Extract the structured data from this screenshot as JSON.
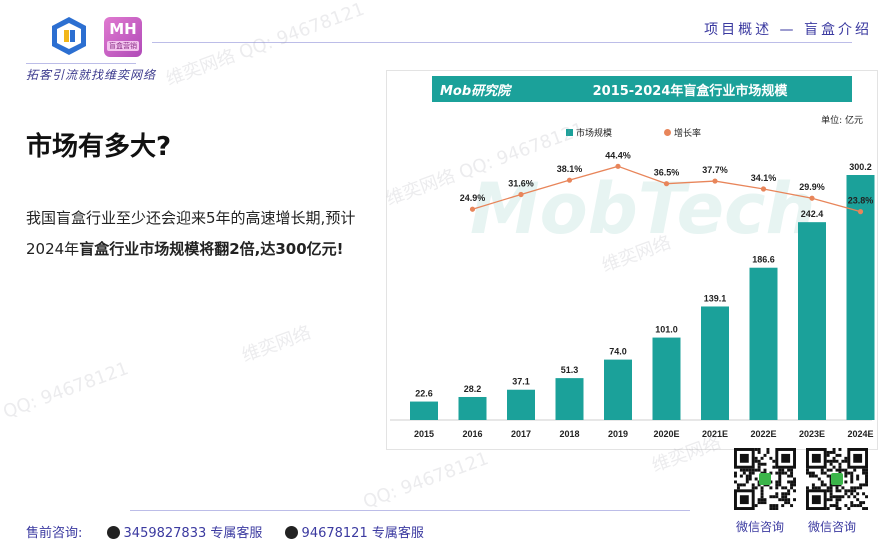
{
  "header": {
    "tagline": "拓客引流就找维奕网络",
    "section_title": "项目概述 — 盲盒介绍",
    "logo2_top": "MH",
    "logo2_bottom": "盲盒营销"
  },
  "content": {
    "heading": "市场有多大?",
    "desc_normal": "我国盲盒行业至少还会迎来5年的高速增长期,预计2024年",
    "desc_bold": "盲盒行业市场规模将翻2倍,达300亿元!"
  },
  "chart_panel": {
    "source_logo": "Mob研究院",
    "watermark": "MobTech"
  },
  "chart_data": {
    "type": "bar",
    "title": "2015-2024年盲盒行业市场规模",
    "unit": "单位: 亿元",
    "categories": [
      "2015",
      "2016",
      "2017",
      "2018",
      "2019",
      "2020E",
      "2021E",
      "2022E",
      "2023E",
      "2024E"
    ],
    "series": [
      {
        "name": "市场规模",
        "type": "bar",
        "color": "#1ba19a",
        "values": [
          22.6,
          28.2,
          37.1,
          51.3,
          74.0,
          101.0,
          139.1,
          186.6,
          242.4,
          300.2
        ],
        "labels": [
          "22.6",
          "28.2",
          "37.1",
          "51.3",
          "74.0",
          "101.0",
          "139.1",
          "186.6",
          "242.4",
          "300.2"
        ]
      },
      {
        "name": "增长率",
        "type": "line",
        "color": "#e8855a",
        "values": [
          null,
          24.9,
          31.6,
          38.1,
          44.4,
          36.5,
          37.7,
          34.1,
          29.9,
          23.8
        ],
        "labels": [
          "",
          "24.9%",
          "31.6%",
          "38.1%",
          "44.4%",
          "36.5%",
          "37.7%",
          "34.1%",
          "29.9%",
          "23.8%"
        ]
      }
    ],
    "ylim": [
      0,
      300.2
    ],
    "legend_position": "top"
  },
  "qr": [
    {
      "caption": "微信咨询"
    },
    {
      "caption": "微信咨询"
    }
  ],
  "footer": {
    "label": "售前咨询:",
    "contacts": [
      {
        "number": "3459827833",
        "role": "专属客服"
      },
      {
        "number": "94678121",
        "role": "专属客服"
      }
    ]
  },
  "watermarks": [
    "维奕网络 QQ: 94678121",
    "维奕网络 QQ: 94678121",
    "维奕网络",
    "QQ: 94678121",
    "维奕网络",
    "QQ: 94678121",
    "维奕网络"
  ]
}
